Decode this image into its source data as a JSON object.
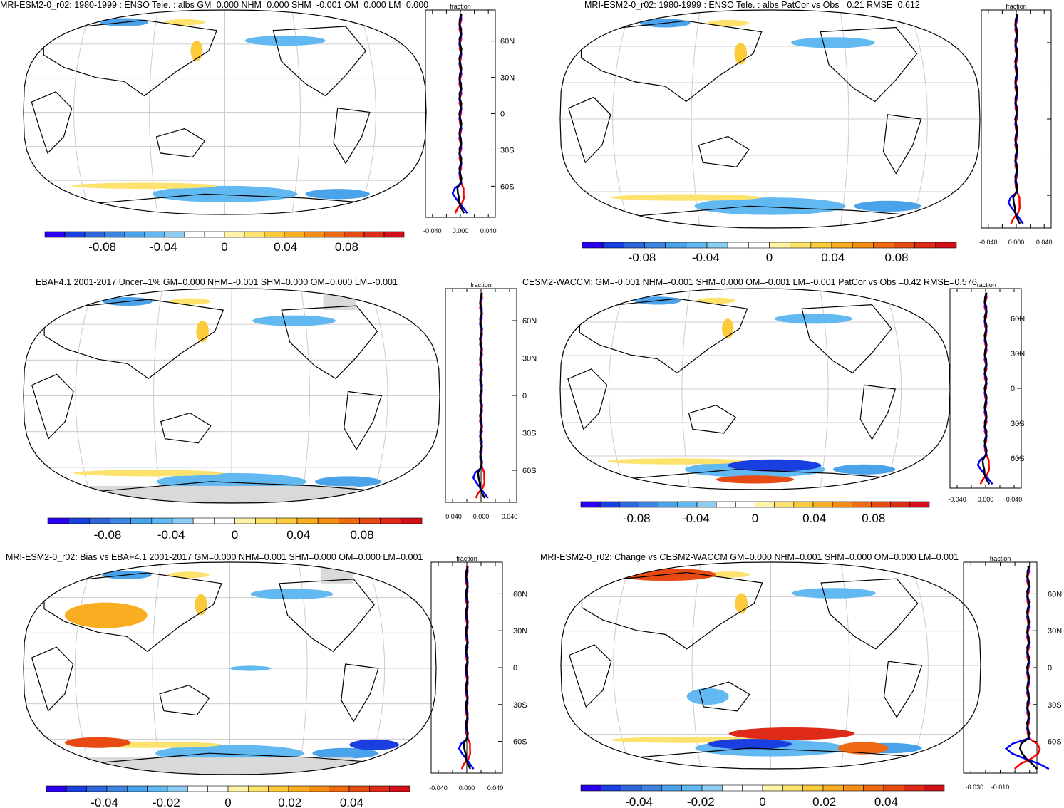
{
  "panels": [
    {
      "id": "p1",
      "title": "MRI-ESM2-0_r02: 1980-1999 : ENSO Tele. : albs GM=0.000 NHM=0.000 SHM=-0.001 OM=0.000 LM=0.000",
      "zonal_label": "fraction",
      "lat_ticks": [
        "60N",
        "30N",
        "0",
        "30S",
        "60S"
      ],
      "x_ticks": [
        "-0.040",
        "0.000",
        "0.040"
      ],
      "colorbar_labels": [
        "-0.08",
        "-0.04",
        "0",
        "0.04",
        "0.08"
      ]
    },
    {
      "id": "p2",
      "title": "MRI-ESM2-0_r02: 1980-1999 : ENSO Tele. : albs PatCor vs Obs =0.21 RMSE=0.612",
      "zonal_label": "fraction",
      "lat_ticks": [],
      "x_ticks": [
        "-0.040",
        "0.000",
        "0.040"
      ],
      "colorbar_labels": [
        "-0.08",
        "-0.04",
        "0",
        "0.04",
        "0.08"
      ]
    },
    {
      "id": "p3",
      "title": "EBAF4.1 2001-2017 Uncer=1% GM=0.000 NHM=-0.001 SHM=0.000 OM=0.000 LM=-0.001",
      "zonal_label": "fraction",
      "lat_ticks": [
        "60N",
        "30N",
        "0",
        "30S",
        "60S"
      ],
      "x_ticks": [
        "-0.040",
        "0.000",
        "0.040"
      ],
      "colorbar_labels": [
        "-0.08",
        "-0.04",
        "0",
        "0.04",
        "0.08"
      ]
    },
    {
      "id": "p4",
      "title": "CESM2-WACCM: GM=-0.001 NHM=-0.001 SHM=0.000 OM=-0.001 LM=-0.001 PatCor vs Obs =0.42 RMSE=0.576",
      "zonal_label": "fraction",
      "lat_ticks": [
        "60N",
        "30N",
        "0",
        "30S",
        "60S"
      ],
      "x_ticks": [
        "-0.040",
        "0.000",
        "0.040"
      ],
      "colorbar_labels": [
        "-0.08",
        "-0.04",
        "0",
        "0.04",
        "0.08"
      ]
    },
    {
      "id": "p5",
      "title": "MRI-ESM2-0_r02: Bias vs EBAF4.1 2001-2017 GM=0.000 NHM=0.001 SHM=0.000 OM=0.000 LM=0.001",
      "zonal_label": "fraction",
      "lat_ticks": [
        "60N",
        "30N",
        "0",
        "30S",
        "60S"
      ],
      "x_ticks": [
        "-0.040",
        "0.000",
        "0.040"
      ],
      "colorbar_labels": [
        "-0.04",
        "-0.02",
        "0",
        "0.02",
        "0.04"
      ]
    },
    {
      "id": "p6",
      "title": "MRI-ESM2-0_r02: Change vs CESM2-WACCM GM=0.000 NHM=0.001 SHM=0.000 OM=0.000 LM=0.001",
      "zonal_label": "fraction",
      "lat_ticks": [
        "60N",
        "30N",
        "0",
        "30S",
        "60S"
      ],
      "x_ticks": [
        "-0.030",
        "-0.010"
      ],
      "colorbar_labels": [
        "-0.04",
        "-0.02",
        "0",
        "0.02",
        "0.04"
      ]
    }
  ],
  "colors": {
    "scale": [
      "#2b00f0",
      "#1a3fe0",
      "#2f66dc",
      "#3d85e0",
      "#4aa3ea",
      "#62b8f0",
      "#8ccbf2",
      "#ffffff",
      "#ffffff",
      "#fff3a8",
      "#fde36e",
      "#fccb3c",
      "#f9ad21",
      "#f58e12",
      "#ef6a12",
      "#e84a14",
      "#df2a18",
      "#d40f1a"
    ],
    "line_model": "#ff0000",
    "line_obs": "#0000ff",
    "line_mean": "#000000",
    "missing": "#d9d9d9"
  }
}
